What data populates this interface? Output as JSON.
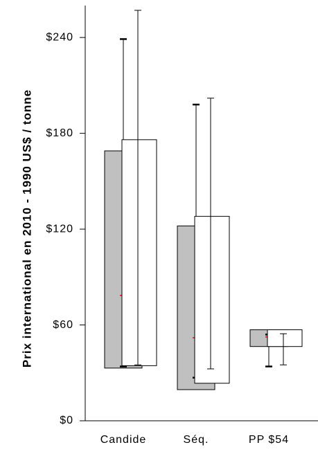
{
  "chart_data": {
    "type": "box",
    "y_label": "Prix international en 2010 - 1990 US$ / tonne",
    "categories": [
      "Candide",
      "Séq.",
      "PP $54"
    ],
    "series": [
      {
        "color": "#c0c0c0",
        "high": [
          239,
          198,
          54
        ],
        "top": [
          169,
          122,
          57
        ],
        "bottom": [
          33,
          19.5,
          46.5
        ],
        "low": [
          34,
          27,
          34
        ],
        "mean": [
          78.5,
          52,
          52.5
        ],
        "mean_color": "#ff0000"
      },
      {
        "color": "#ffffff",
        "high": [
          257,
          202,
          54.5
        ],
        "top": [
          176,
          128,
          57
        ],
        "bottom": [
          34.5,
          23.5,
          46.5
        ],
        "low": [
          35,
          32.5,
          35
        ]
      }
    ],
    "ylim": [
      0,
      260
    ],
    "yticks": [
      {
        "value": 0,
        "label": "$0"
      },
      {
        "value": 60,
        "label": "$60"
      },
      {
        "value": 120,
        "label": "$120"
      },
      {
        "value": 180,
        "label": "$180"
      },
      {
        "value": 240,
        "label": "$240"
      }
    ]
  }
}
